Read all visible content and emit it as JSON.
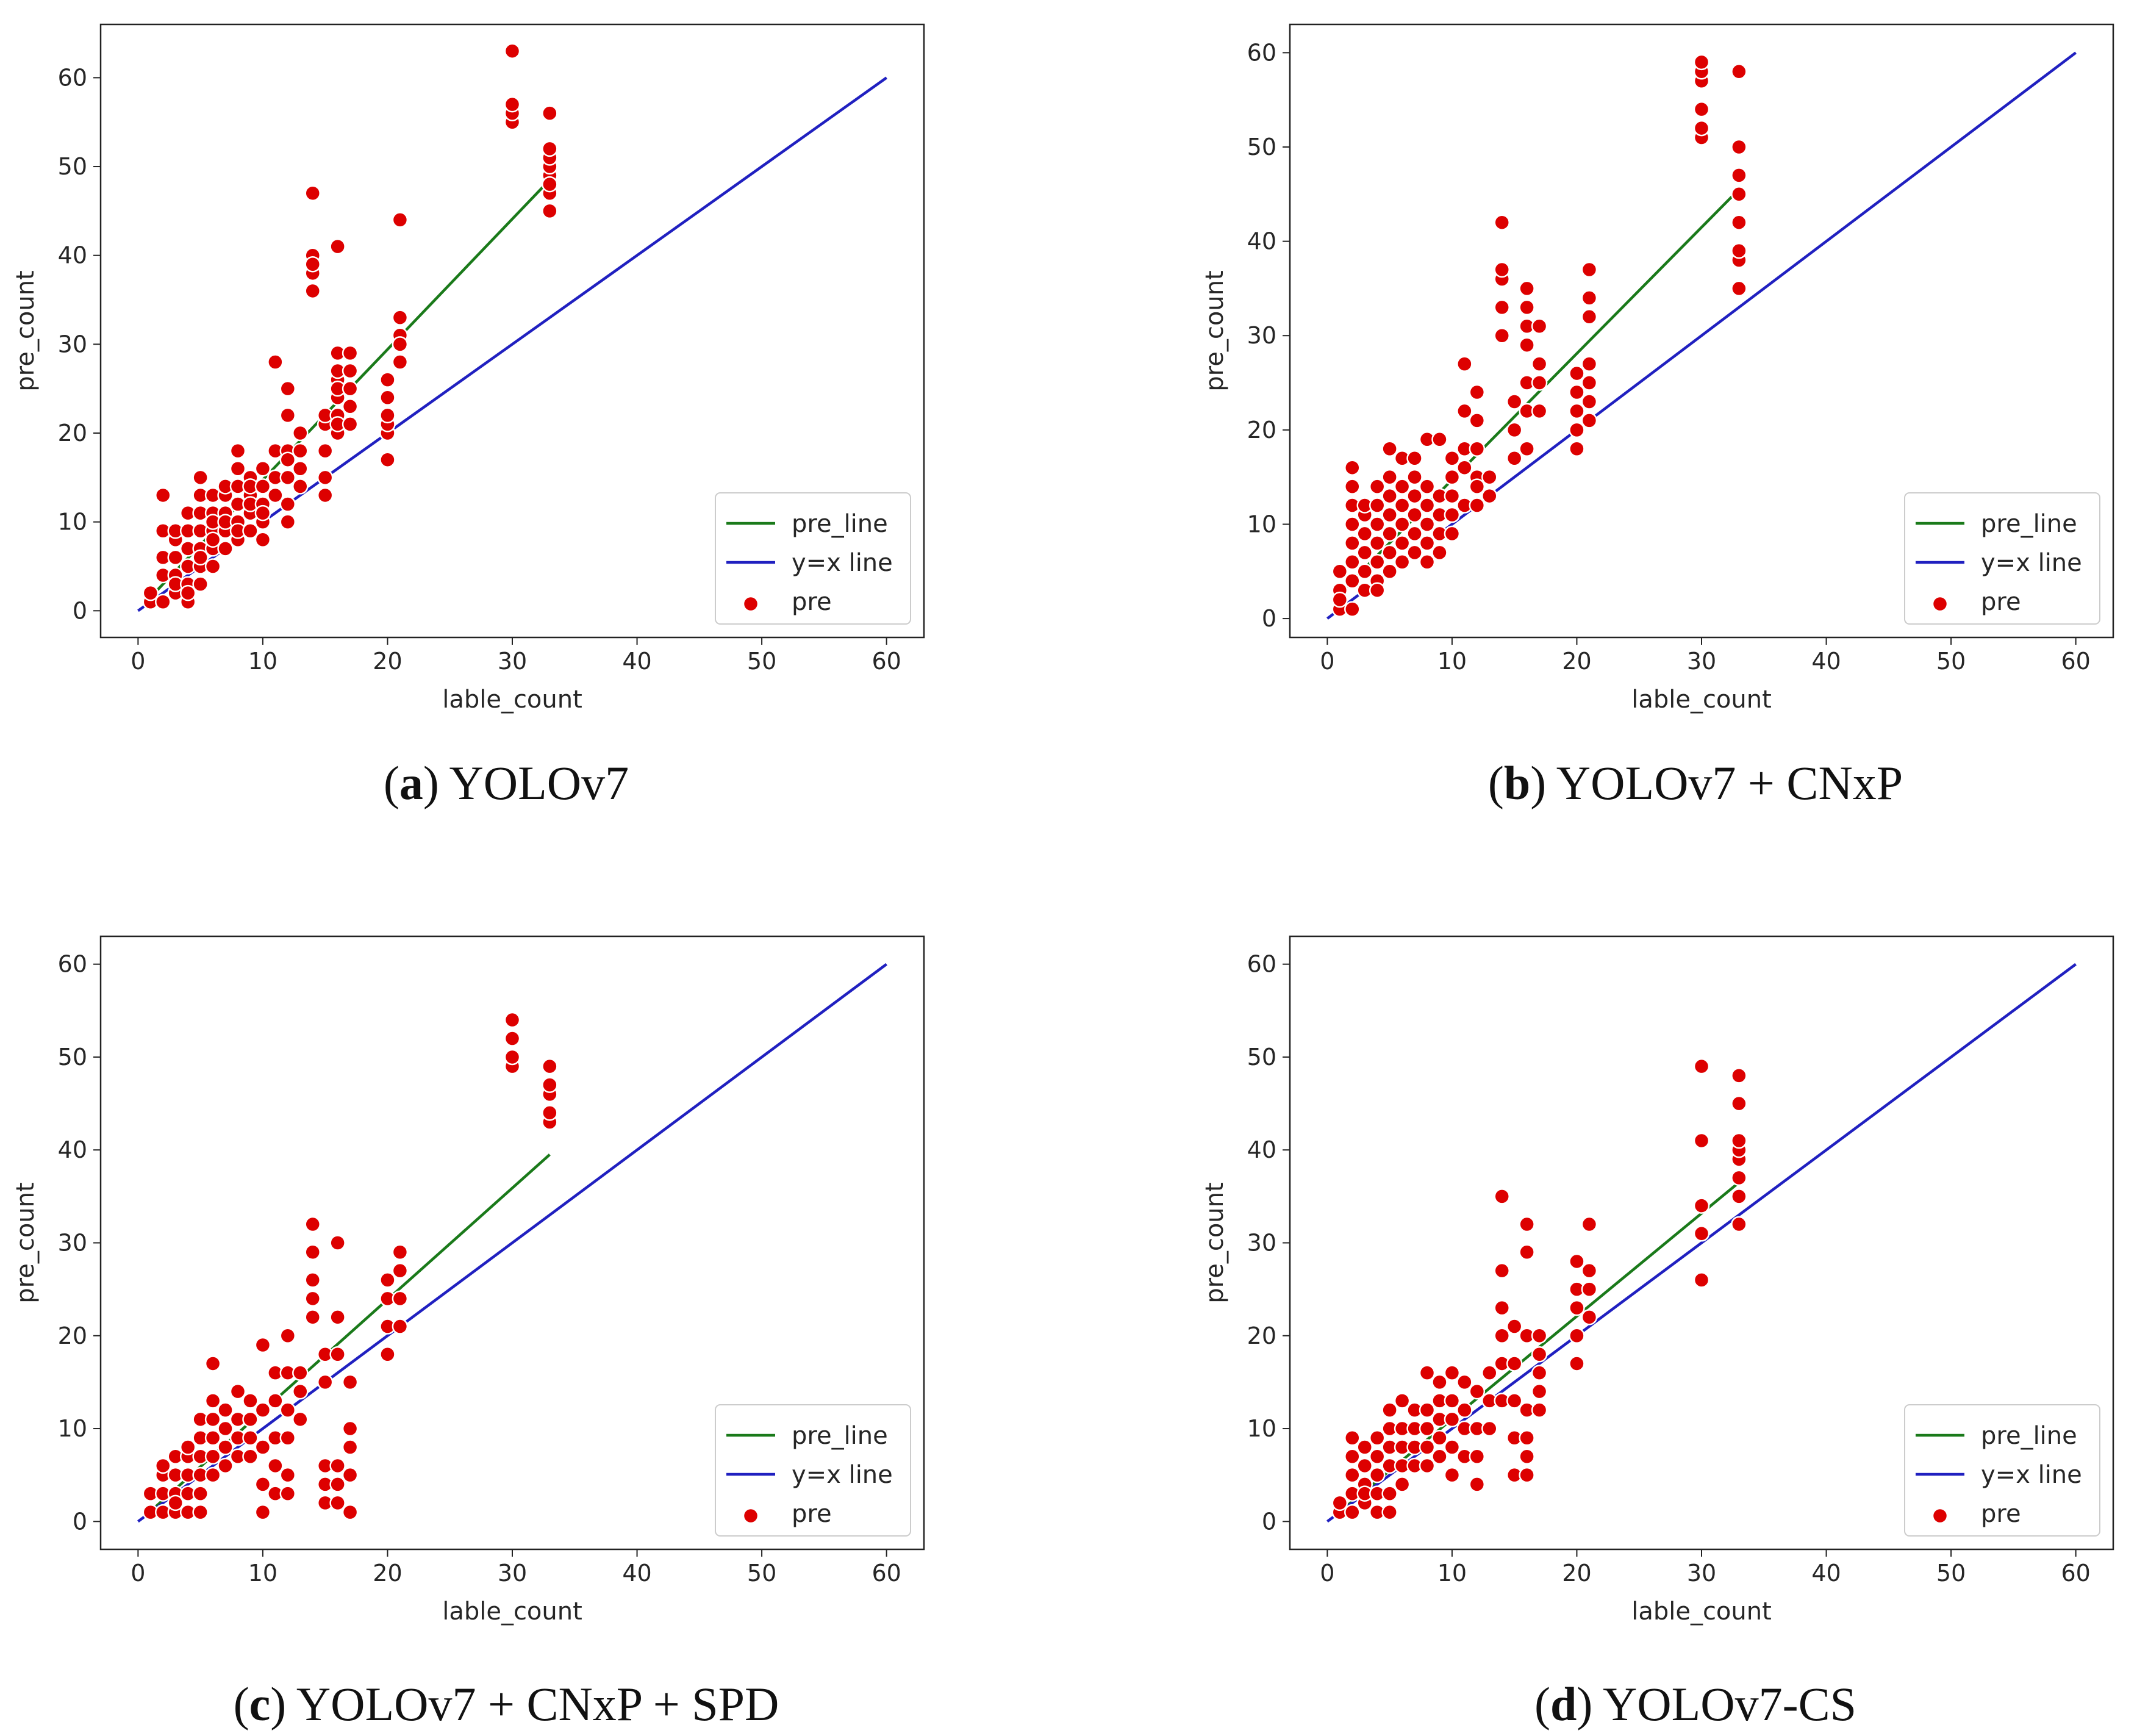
{
  "chart_data": [
    {
      "type": "scatter",
      "caption_letter": "a",
      "caption_text": "YOLOv7",
      "xlabel": "lable_count",
      "ylabel": "pre_count",
      "xlim": [
        -3,
        63
      ],
      "ylim": [
        -3,
        66
      ],
      "xticks": [
        "0",
        "10",
        "20",
        "30",
        "40",
        "50",
        "60"
      ],
      "yticks": [
        "0",
        "10",
        "20",
        "30",
        "40",
        "50",
        "60"
      ],
      "legend": {
        "position": "lower-right",
        "entries": [
          "pre_line",
          "y=x line",
          "pre"
        ]
      },
      "series": [
        {
          "name": "pre_line",
          "kind": "line",
          "color": "#1a7a1a",
          "x": [
            0.5,
            33
          ],
          "y": [
            0.8,
            48.5
          ]
        },
        {
          "name": "y=x line",
          "kind": "line",
          "color": "#2020c0",
          "x": [
            0,
            60
          ],
          "y": [
            0,
            60
          ]
        },
        {
          "name": "pre",
          "kind": "scatter",
          "color": "#dd0000",
          "x": [
            1,
            1,
            2,
            2,
            2,
            2,
            2,
            3,
            3,
            3,
            3,
            3,
            3,
            4,
            4,
            4,
            4,
            4,
            4,
            4,
            5,
            5,
            5,
            5,
            5,
            5,
            5,
            5,
            6,
            6,
            6,
            6,
            6,
            6,
            6,
            7,
            7,
            7,
            7,
            7,
            7,
            8,
            8,
            8,
            8,
            8,
            8,
            8,
            9,
            9,
            9,
            9,
            9,
            9,
            10,
            10,
            10,
            10,
            10,
            10,
            11,
            11,
            11,
            11,
            11,
            12,
            12,
            12,
            12,
            12,
            12,
            12,
            13,
            13,
            13,
            13,
            14,
            14,
            14,
            14,
            14,
            15,
            15,
            15,
            15,
            15,
            16,
            16,
            16,
            16,
            16,
            16,
            16,
            16,
            16,
            17,
            17,
            17,
            17,
            17,
            20,
            20,
            20,
            20,
            20,
            20,
            21,
            21,
            21,
            21,
            21,
            30,
            30,
            30,
            30,
            33,
            33,
            33,
            33,
            33,
            33,
            33,
            33
          ],
          "y": [
            1,
            2,
            1,
            4,
            6,
            9,
            13,
            2,
            4,
            6,
            8,
            9,
            3,
            1,
            3,
            5,
            7,
            9,
            11,
            2,
            3,
            5,
            7,
            9,
            11,
            13,
            15,
            6,
            5,
            7,
            9,
            11,
            13,
            8,
            10,
            7,
            9,
            11,
            13,
            14,
            10,
            8,
            10,
            12,
            14,
            16,
            18,
            9,
            9,
            11,
            13,
            15,
            12,
            14,
            8,
            10,
            12,
            14,
            16,
            11,
            13,
            15,
            18,
            28,
            15,
            10,
            12,
            15,
            18,
            22,
            25,
            17,
            14,
            16,
            18,
            20,
            36,
            38,
            40,
            39,
            47,
            13,
            15,
            18,
            21,
            22,
            20,
            22,
            24,
            26,
            27,
            29,
            21,
            41,
            25,
            21,
            23,
            25,
            27,
            29,
            17,
            20,
            21,
            22,
            24,
            26,
            28,
            31,
            33,
            44,
            30,
            55,
            56,
            57,
            63,
            45,
            47,
            49,
            50,
            51,
            52,
            56,
            48
          ]
        }
      ]
    },
    {
      "type": "scatter",
      "caption_letter": "b",
      "caption_text": "YOLOv7 + CNxP",
      "xlabel": "lable_count",
      "ylabel": "pre_count",
      "xlim": [
        -3,
        63
      ],
      "ylim": [
        -2,
        63
      ],
      "xticks": [
        "0",
        "10",
        "20",
        "30",
        "40",
        "50",
        "60"
      ],
      "yticks": [
        "0",
        "10",
        "20",
        "30",
        "40",
        "50",
        "60"
      ],
      "legend": {
        "position": "lower-right",
        "entries": [
          "pre_line",
          "y=x line",
          "pre"
        ]
      },
      "series": [
        {
          "name": "pre_line",
          "kind": "line",
          "color": "#1a7a1a",
          "x": [
            0.5,
            33
          ],
          "y": [
            2,
            45.5
          ]
        },
        {
          "name": "y=x line",
          "kind": "line",
          "color": "#2020c0",
          "x": [
            0,
            60
          ],
          "y": [
            0,
            60
          ]
        },
        {
          "name": "pre",
          "kind": "scatter",
          "color": "#dd0000",
          "x": [
            1,
            1,
            1,
            1,
            2,
            2,
            2,
            2,
            2,
            2,
            2,
            2,
            3,
            3,
            3,
            3,
            3,
            3,
            4,
            4,
            4,
            4,
            4,
            4,
            4,
            5,
            5,
            5,
            5,
            5,
            5,
            5,
            6,
            6,
            6,
            6,
            6,
            6,
            7,
            7,
            7,
            7,
            7,
            7,
            8,
            8,
            8,
            8,
            8,
            8,
            9,
            9,
            9,
            9,
            9,
            10,
            10,
            10,
            10,
            10,
            11,
            11,
            11,
            11,
            11,
            12,
            12,
            12,
            12,
            12,
            12,
            13,
            13,
            14,
            14,
            14,
            14,
            14,
            15,
            15,
            15,
            16,
            16,
            16,
            16,
            16,
            16,
            16,
            17,
            17,
            17,
            17,
            20,
            20,
            20,
            20,
            20,
            21,
            21,
            21,
            21,
            21,
            21,
            21,
            30,
            30,
            30,
            30,
            30,
            30,
            33,
            33,
            33,
            33,
            33,
            33,
            33,
            33
          ],
          "y": [
            1,
            3,
            5,
            2,
            1,
            4,
            6,
            8,
            10,
            12,
            14,
            16,
            3,
            5,
            7,
            9,
            11,
            12,
            4,
            6,
            8,
            10,
            12,
            14,
            3,
            5,
            7,
            9,
            11,
            13,
            15,
            18,
            6,
            8,
            10,
            12,
            14,
            17,
            7,
            9,
            11,
            13,
            15,
            17,
            6,
            8,
            10,
            12,
            14,
            19,
            7,
            9,
            11,
            13,
            19,
            9,
            11,
            13,
            15,
            17,
            12,
            16,
            18,
            22,
            27,
            12,
            15,
            18,
            21,
            24,
            14,
            15,
            13,
            30,
            33,
            36,
            37,
            42,
            17,
            20,
            23,
            18,
            22,
            25,
            29,
            31,
            33,
            35,
            22,
            25,
            27,
            31,
            18,
            20,
            22,
            24,
            26,
            21,
            23,
            25,
            27,
            32,
            34,
            37,
            51,
            52,
            54,
            57,
            58,
            59,
            35,
            38,
            39,
            42,
            45,
            47,
            50,
            58
          ]
        }
      ]
    },
    {
      "type": "scatter",
      "caption_letter": "c",
      "caption_text": "YOLOv7 + CNxP + SPD",
      "xlabel": "lable_count",
      "ylabel": "pre_count",
      "xlim": [
        -3,
        63
      ],
      "ylim": [
        -3,
        63
      ],
      "xticks": [
        "0",
        "10",
        "20",
        "30",
        "40",
        "50",
        "60"
      ],
      "yticks": [
        "0",
        "10",
        "20",
        "30",
        "40",
        "50",
        "60"
      ],
      "legend": {
        "position": "lower-right",
        "entries": [
          "pre_line",
          "y=x line",
          "pre"
        ]
      },
      "series": [
        {
          "name": "pre_line",
          "kind": "line",
          "color": "#1a7a1a",
          "x": [
            0.5,
            33
          ],
          "y": [
            0.5,
            39.5
          ]
        },
        {
          "name": "y=x line",
          "kind": "line",
          "color": "#2020c0",
          "x": [
            0,
            60
          ],
          "y": [
            0,
            60
          ]
        },
        {
          "name": "pre",
          "kind": "scatter",
          "color": "#dd0000",
          "x": [
            1,
            1,
            2,
            2,
            2,
            2,
            3,
            3,
            3,
            3,
            3,
            4,
            4,
            4,
            4,
            4,
            5,
            5,
            5,
            5,
            5,
            5,
            6,
            6,
            6,
            6,
            6,
            6,
            7,
            7,
            7,
            7,
            8,
            8,
            8,
            8,
            9,
            9,
            9,
            9,
            10,
            10,
            10,
            10,
            10,
            11,
            11,
            11,
            11,
            11,
            12,
            12,
            12,
            12,
            12,
            12,
            13,
            13,
            13,
            14,
            14,
            14,
            14,
            14,
            15,
            15,
            15,
            15,
            15,
            16,
            16,
            16,
            16,
            16,
            16,
            17,
            17,
            17,
            17,
            17,
            20,
            20,
            20,
            20,
            21,
            21,
            21,
            21,
            30,
            30,
            30,
            30,
            33,
            33,
            33,
            33,
            33
          ],
          "y": [
            1,
            3,
            1,
            3,
            5,
            6,
            1,
            3,
            5,
            7,
            2,
            1,
            3,
            5,
            7,
            8,
            1,
            3,
            5,
            7,
            9,
            11,
            5,
            7,
            9,
            11,
            13,
            17,
            6,
            8,
            10,
            12,
            7,
            9,
            11,
            14,
            7,
            9,
            11,
            13,
            1,
            4,
            8,
            12,
            19,
            3,
            6,
            9,
            13,
            16,
            3,
            5,
            9,
            12,
            16,
            20,
            11,
            14,
            16,
            22,
            24,
            26,
            29,
            32,
            2,
            4,
            6,
            15,
            18,
            2,
            4,
            6,
            18,
            22,
            30,
            1,
            5,
            8,
            10,
            15,
            18,
            21,
            24,
            26,
            21,
            24,
            27,
            29,
            49,
            50,
            52,
            54,
            43,
            44,
            46,
            47,
            49
          ]
        }
      ]
    },
    {
      "type": "scatter",
      "caption_letter": "d",
      "caption_text": "YOLOv7-CS",
      "xlabel": "lable_count",
      "ylabel": "pre_count",
      "xlim": [
        -3,
        63
      ],
      "ylim": [
        -3,
        63
      ],
      "xticks": [
        "0",
        "10",
        "20",
        "30",
        "40",
        "50",
        "60"
      ],
      "yticks": [
        "0",
        "10",
        "20",
        "30",
        "40",
        "50",
        "60"
      ],
      "legend": {
        "position": "lower-right",
        "entries": [
          "pre_line",
          "y=x line",
          "pre"
        ]
      },
      "series": [
        {
          "name": "pre_line",
          "kind": "line",
          "color": "#1a7a1a",
          "x": [
            0.5,
            33
          ],
          "y": [
            0.5,
            36.5
          ]
        },
        {
          "name": "y=x line",
          "kind": "line",
          "color": "#2020c0",
          "x": [
            0,
            60
          ],
          "y": [
            0,
            60
          ]
        },
        {
          "name": "pre",
          "kind": "scatter",
          "color": "#dd0000",
          "x": [
            1,
            1,
            2,
            2,
            2,
            2,
            2,
            3,
            3,
            3,
            3,
            3,
            4,
            4,
            4,
            4,
            4,
            5,
            5,
            5,
            5,
            5,
            5,
            6,
            6,
            6,
            6,
            6,
            7,
            7,
            7,
            7,
            8,
            8,
            8,
            8,
            8,
            9,
            9,
            9,
            9,
            9,
            10,
            10,
            10,
            10,
            10,
            11,
            11,
            11,
            11,
            12,
            12,
            12,
            12,
            13,
            13,
            13,
            14,
            14,
            14,
            14,
            14,
            14,
            15,
            15,
            15,
            15,
            15,
            16,
            16,
            16,
            16,
            16,
            16,
            16,
            17,
            17,
            17,
            17,
            17,
            20,
            20,
            20,
            20,
            20,
            21,
            21,
            21,
            21,
            30,
            30,
            30,
            30,
            30,
            33,
            33,
            33,
            33,
            33,
            33,
            33,
            33
          ],
          "y": [
            1,
            2,
            1,
            3,
            5,
            7,
            9,
            2,
            4,
            6,
            8,
            3,
            1,
            3,
            5,
            7,
            9,
            1,
            3,
            6,
            8,
            10,
            12,
            4,
            6,
            8,
            10,
            13,
            6,
            8,
            10,
            12,
            6,
            8,
            10,
            12,
            16,
            7,
            9,
            11,
            13,
            15,
            5,
            8,
            11,
            13,
            16,
            7,
            10,
            12,
            15,
            4,
            7,
            10,
            14,
            10,
            13,
            16,
            13,
            17,
            20,
            23,
            27,
            35,
            5,
            9,
            13,
            17,
            21,
            5,
            7,
            9,
            12,
            20,
            29,
            32,
            12,
            14,
            16,
            18,
            20,
            17,
            20,
            23,
            25,
            28,
            22,
            25,
            27,
            32,
            26,
            31,
            34,
            41,
            49,
            32,
            35,
            37,
            39,
            40,
            41,
            45,
            48
          ]
        }
      ]
    }
  ]
}
